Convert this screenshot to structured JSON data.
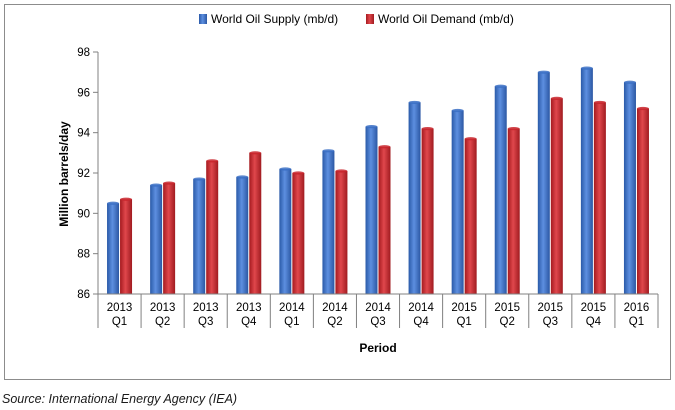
{
  "chart_data": {
    "type": "bar",
    "categories": [
      [
        "2013",
        "Q1"
      ],
      [
        "2013",
        "Q2"
      ],
      [
        "2013",
        "Q3"
      ],
      [
        "2013",
        "Q4"
      ],
      [
        "2014",
        "Q1"
      ],
      [
        "2014",
        "Q2"
      ],
      [
        "2014",
        "Q3"
      ],
      [
        "2014",
        "Q4"
      ],
      [
        "2015",
        "Q1"
      ],
      [
        "2015",
        "Q2"
      ],
      [
        "2015",
        "Q3"
      ],
      [
        "2015",
        "Q4"
      ],
      [
        "2016",
        "Q1"
      ]
    ],
    "series": [
      {
        "name": "World Oil Supply (mb/d)",
        "color": "#3a6fc4",
        "values": [
          90.5,
          91.4,
          91.7,
          91.8,
          92.2,
          93.1,
          94.3,
          95.5,
          95.1,
          96.3,
          97.0,
          97.2,
          96.5
        ]
      },
      {
        "name": "World Oil Demand (mb/d)",
        "color": "#c8252b",
        "values": [
          90.7,
          91.5,
          92.6,
          93.0,
          92.0,
          92.1,
          93.3,
          94.2,
          93.7,
          94.2,
          95.7,
          95.5,
          95.2
        ]
      }
    ],
    "xlabel": "Period",
    "ylabel": "Million barrels/day",
    "ylim": [
      86,
      98
    ],
    "yticks": [
      86,
      88,
      90,
      92,
      94,
      96,
      98
    ],
    "grid": false,
    "legend_position": "top-center"
  },
  "source_note": "Source: International Energy Agency (IEA)"
}
